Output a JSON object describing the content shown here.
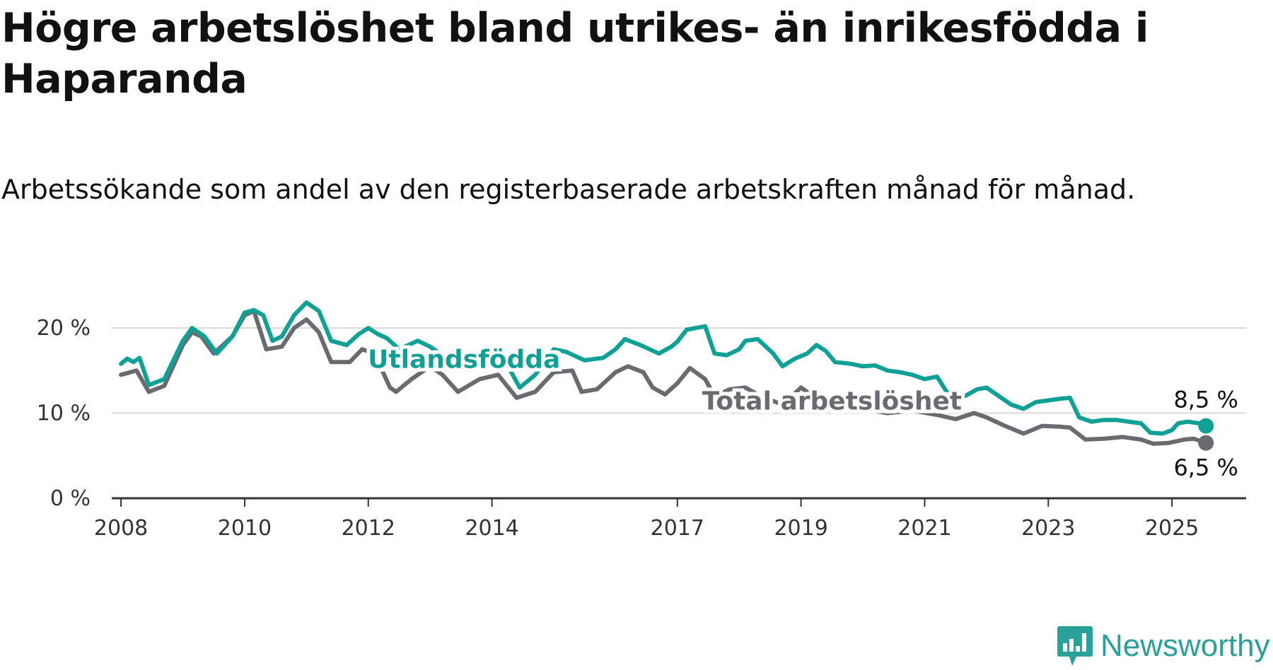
{
  "title": "Högre arbetslöshet bland utrikes- än inrikesfödda i Haparanda",
  "subtitle": "Arbetssökande som andel av den registerbaserade arbetskraften månad för månad.",
  "brand": {
    "name": "Newsworthy",
    "icon": "bar-chart-badge-icon",
    "color": "#2aa198"
  },
  "chart_data": {
    "type": "line",
    "ylim": [
      0,
      22
    ],
    "xlim": [
      2007.85,
      2026.2
    ],
    "y_ticks": [
      {
        "value": 0,
        "label": "0 %"
      },
      {
        "value": 10,
        "label": "10 %"
      },
      {
        "value": 20,
        "label": "20 %"
      }
    ],
    "x_ticks": [
      {
        "value": 2008,
        "label": "2008"
      },
      {
        "value": 2010,
        "label": "2010"
      },
      {
        "value": 2012,
        "label": "2012"
      },
      {
        "value": 2014,
        "label": "2014"
      },
      {
        "value": 2017,
        "label": "2017"
      },
      {
        "value": 2019,
        "label": "2019"
      },
      {
        "value": 2021,
        "label": "2021"
      },
      {
        "value": 2023,
        "label": "2023"
      },
      {
        "value": 2025,
        "label": "2025"
      }
    ],
    "grid": true,
    "series": [
      {
        "name": "Total arbetslöshet",
        "color": "#6b6a70",
        "end_label": "6,5 %",
        "points": [
          [
            2008.0,
            14.5
          ],
          [
            2008.25,
            15.0
          ],
          [
            2008.45,
            12.5
          ],
          [
            2008.7,
            13.2
          ],
          [
            2009.0,
            18.0
          ],
          [
            2009.15,
            19.5
          ],
          [
            2009.3,
            19.0
          ],
          [
            2009.5,
            17.0
          ],
          [
            2009.8,
            19.0
          ],
          [
            2010.0,
            21.5
          ],
          [
            2010.15,
            22.0
          ],
          [
            2010.35,
            17.5
          ],
          [
            2010.6,
            17.8
          ],
          [
            2010.8,
            20.0
          ],
          [
            2011.0,
            21.0
          ],
          [
            2011.2,
            19.5
          ],
          [
            2011.4,
            16.0
          ],
          [
            2011.7,
            16.0
          ],
          [
            2011.9,
            17.5
          ],
          [
            2012.1,
            17.0
          ],
          [
            2012.35,
            13.0
          ],
          [
            2012.45,
            12.5
          ],
          [
            2012.7,
            14.0
          ],
          [
            2013.0,
            15.5
          ],
          [
            2013.2,
            14.5
          ],
          [
            2013.45,
            12.5
          ],
          [
            2013.8,
            14.0
          ],
          [
            2014.1,
            14.5
          ],
          [
            2014.4,
            11.8
          ],
          [
            2014.7,
            12.5
          ],
          [
            2015.0,
            14.8
          ],
          [
            2015.3,
            15.0
          ],
          [
            2015.45,
            12.5
          ],
          [
            2015.7,
            12.8
          ],
          [
            2016.0,
            14.8
          ],
          [
            2016.2,
            15.5
          ],
          [
            2016.45,
            14.8
          ],
          [
            2016.6,
            13.0
          ],
          [
            2016.8,
            12.2
          ],
          [
            2017.0,
            13.5
          ],
          [
            2017.2,
            15.3
          ],
          [
            2017.45,
            14.0
          ],
          [
            2017.6,
            12.0
          ],
          [
            2017.85,
            12.8
          ],
          [
            2018.1,
            13.0
          ],
          [
            2018.35,
            12.0
          ],
          [
            2018.7,
            11.0
          ],
          [
            2019.0,
            13.0
          ],
          [
            2019.3,
            11.5
          ],
          [
            2019.7,
            10.8
          ],
          [
            2020.0,
            10.5
          ],
          [
            2020.4,
            10.0
          ],
          [
            2020.8,
            10.3
          ],
          [
            2021.2,
            9.8
          ],
          [
            2021.5,
            9.3
          ],
          [
            2021.8,
            10.0
          ],
          [
            2022.0,
            9.5
          ],
          [
            2022.3,
            8.5
          ],
          [
            2022.6,
            7.6
          ],
          [
            2022.9,
            8.5
          ],
          [
            2023.2,
            8.4
          ],
          [
            2023.35,
            8.3
          ],
          [
            2023.6,
            6.9
          ],
          [
            2023.9,
            7.0
          ],
          [
            2024.2,
            7.2
          ],
          [
            2024.5,
            6.9
          ],
          [
            2024.7,
            6.4
          ],
          [
            2024.95,
            6.5
          ],
          [
            2025.2,
            6.9
          ],
          [
            2025.35,
            7.0
          ],
          [
            2025.55,
            6.5
          ]
        ]
      },
      {
        "name": "Utlandsfödda",
        "color": "#0fa195",
        "end_label": "8,5 %",
        "points": [
          [
            2008.0,
            15.8
          ],
          [
            2008.1,
            16.4
          ],
          [
            2008.2,
            16.0
          ],
          [
            2008.3,
            16.5
          ],
          [
            2008.45,
            13.3
          ],
          [
            2008.7,
            14.0
          ],
          [
            2009.0,
            18.5
          ],
          [
            2009.15,
            20.0
          ],
          [
            2009.35,
            19.0
          ],
          [
            2009.55,
            17.0
          ],
          [
            2009.8,
            19.0
          ],
          [
            2010.0,
            21.8
          ],
          [
            2010.15,
            22.1
          ],
          [
            2010.3,
            21.5
          ],
          [
            2010.45,
            18.5
          ],
          [
            2010.6,
            19.0
          ],
          [
            2010.8,
            21.5
          ],
          [
            2011.0,
            23.0
          ],
          [
            2011.2,
            22.0
          ],
          [
            2011.4,
            18.5
          ],
          [
            2011.65,
            18.0
          ],
          [
            2011.85,
            19.3
          ],
          [
            2012.0,
            20.0
          ],
          [
            2012.15,
            19.3
          ],
          [
            2012.3,
            18.8
          ],
          [
            2012.5,
            17.5
          ],
          [
            2012.8,
            18.5
          ],
          [
            2013.0,
            17.8
          ],
          [
            2013.3,
            16.3
          ],
          [
            2013.6,
            16.0
          ],
          [
            2013.9,
            17.0
          ],
          [
            2014.2,
            16.3
          ],
          [
            2014.45,
            13.0
          ],
          [
            2014.7,
            14.5
          ],
          [
            2015.0,
            17.5
          ],
          [
            2015.2,
            17.2
          ],
          [
            2015.5,
            16.2
          ],
          [
            2015.8,
            16.5
          ],
          [
            2016.0,
            17.5
          ],
          [
            2016.15,
            18.7
          ],
          [
            2016.4,
            18.0
          ],
          [
            2016.55,
            17.5
          ],
          [
            2016.7,
            17.0
          ],
          [
            2016.9,
            17.8
          ],
          [
            2017.0,
            18.4
          ],
          [
            2017.15,
            19.8
          ],
          [
            2017.3,
            20.0
          ],
          [
            2017.45,
            20.2
          ],
          [
            2017.6,
            17.0
          ],
          [
            2017.8,
            16.8
          ],
          [
            2018.0,
            17.5
          ],
          [
            2018.1,
            18.5
          ],
          [
            2018.3,
            18.7
          ],
          [
            2018.55,
            17.0
          ],
          [
            2018.7,
            15.5
          ],
          [
            2018.9,
            16.4
          ],
          [
            2019.1,
            17.0
          ],
          [
            2019.25,
            18.0
          ],
          [
            2019.4,
            17.3
          ],
          [
            2019.55,
            16.0
          ],
          [
            2019.8,
            15.8
          ],
          [
            2020.0,
            15.5
          ],
          [
            2020.2,
            15.6
          ],
          [
            2020.4,
            15.0
          ],
          [
            2020.6,
            14.8
          ],
          [
            2020.8,
            14.5
          ],
          [
            2021.0,
            14.0
          ],
          [
            2021.2,
            14.3
          ],
          [
            2021.4,
            12.0
          ],
          [
            2021.65,
            12.0
          ],
          [
            2021.85,
            12.8
          ],
          [
            2022.0,
            13.0
          ],
          [
            2022.2,
            12.0
          ],
          [
            2022.4,
            11.0
          ],
          [
            2022.6,
            10.5
          ],
          [
            2022.8,
            11.3
          ],
          [
            2023.0,
            11.5
          ],
          [
            2023.2,
            11.7
          ],
          [
            2023.35,
            11.8
          ],
          [
            2023.5,
            9.5
          ],
          [
            2023.7,
            9.0
          ],
          [
            2023.9,
            9.2
          ],
          [
            2024.1,
            9.2
          ],
          [
            2024.3,
            9.0
          ],
          [
            2024.5,
            8.8
          ],
          [
            2024.65,
            7.7
          ],
          [
            2024.85,
            7.6
          ],
          [
            2025.0,
            8.0
          ],
          [
            2025.1,
            8.8
          ],
          [
            2025.25,
            9.0
          ],
          [
            2025.45,
            8.8
          ],
          [
            2025.55,
            8.5
          ]
        ]
      }
    ]
  }
}
